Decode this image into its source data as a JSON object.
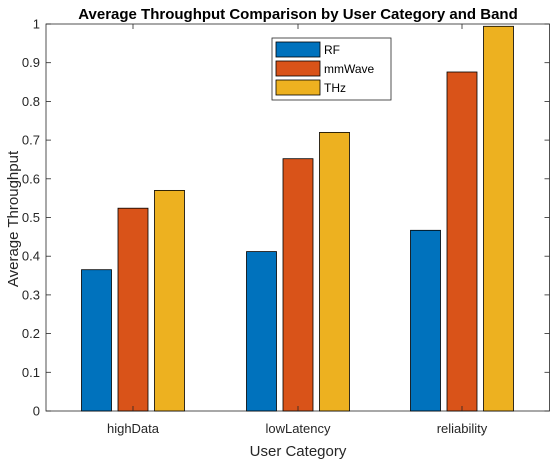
{
  "chart_data": {
    "type": "bar",
    "title": "Average Throughput Comparison by User Category and Band",
    "xlabel": "User Category",
    "ylabel": "Average Throughput",
    "categories": [
      "highData",
      "lowLatency",
      "reliability"
    ],
    "series": [
      {
        "name": "RF",
        "color": "#0072BD",
        "values": [
          0.365,
          0.412,
          0.467
        ]
      },
      {
        "name": "mmWave",
        "color": "#D95319",
        "values": [
          0.524,
          0.652,
          0.876
        ]
      },
      {
        "name": "THz",
        "color": "#EDB120",
        "values": [
          0.57,
          0.72,
          0.994
        ]
      }
    ],
    "ylim": [
      0,
      1
    ],
    "yticks": [
      0,
      0.1,
      0.2,
      0.3,
      0.4,
      0.5,
      0.6,
      0.7,
      0.8,
      0.9,
      1
    ],
    "ytick_labels": [
      "0",
      "0.1",
      "0.2",
      "0.3",
      "0.4",
      "0.5",
      "0.6",
      "0.7",
      "0.8",
      "0.9",
      "1"
    ],
    "grid": false,
    "legend_position": "top-center"
  }
}
